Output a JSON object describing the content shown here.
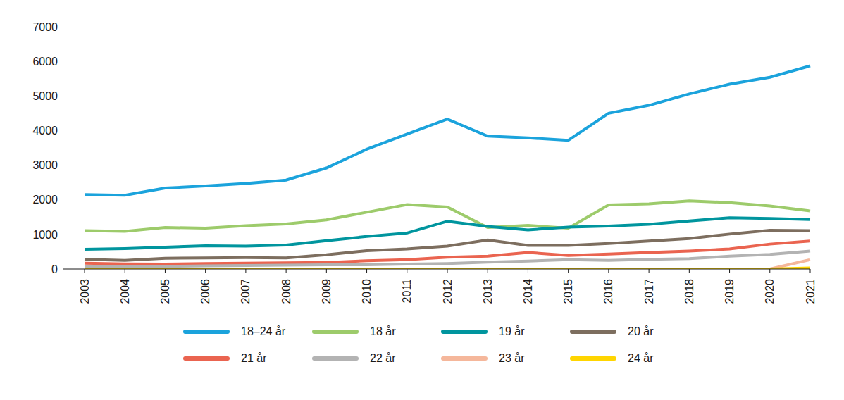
{
  "chart_data": {
    "type": "line",
    "categories": [
      "2003",
      "2004",
      "2005",
      "2006",
      "2007",
      "2008",
      "2009",
      "2010",
      "2011",
      "2012",
      "2013",
      "2014",
      "2015",
      "2016",
      "2017",
      "2018",
      "2019",
      "2020",
      "2021"
    ],
    "series": [
      {
        "name": "18–24 år",
        "color": "#1ba3dc",
        "values": [
          2150,
          2130,
          2340,
          2400,
          2470,
          2570,
          2920,
          3460,
          3900,
          4330,
          3840,
          3790,
          3720,
          4500,
          4730,
          5060,
          5340,
          5540,
          5870
        ]
      },
      {
        "name": "18 år",
        "color": "#9dcb6b",
        "values": [
          1110,
          1090,
          1200,
          1180,
          1250,
          1300,
          1420,
          1640,
          1860,
          1790,
          1200,
          1260,
          1180,
          1850,
          1880,
          1970,
          1920,
          1820,
          1680
        ]
      },
      {
        "name": "19 år",
        "color": "#00959e",
        "values": [
          570,
          590,
          630,
          670,
          660,
          690,
          820,
          940,
          1040,
          1380,
          1230,
          1130,
          1210,
          1240,
          1290,
          1390,
          1480,
          1460,
          1430
        ]
      },
      {
        "name": "20 år",
        "color": "#7d6e5f",
        "values": [
          280,
          250,
          310,
          320,
          330,
          320,
          410,
          530,
          580,
          660,
          840,
          680,
          680,
          740,
          810,
          880,
          1010,
          1120,
          1110
        ]
      },
      {
        "name": "21 år",
        "color": "#ea6450",
        "values": [
          170,
          150,
          140,
          160,
          170,
          180,
          190,
          240,
          270,
          340,
          370,
          480,
          390,
          430,
          480,
          520,
          580,
          720,
          810
        ]
      },
      {
        "name": "22 år",
        "color": "#b3b3b3",
        "values": [
          60,
          70,
          80,
          90,
          100,
          110,
          120,
          120,
          140,
          160,
          200,
          230,
          270,
          250,
          280,
          300,
          370,
          420,
          520
        ]
      },
      {
        "name": "23 år",
        "color": "#f5b79b",
        "values": [
          0,
          0,
          0,
          0,
          0,
          0,
          0,
          0,
          0,
          0,
          0,
          0,
          0,
          0,
          0,
          0,
          0,
          0,
          270
        ]
      },
      {
        "name": "24 år",
        "color": "#ffd500",
        "values": [
          0,
          0,
          0,
          0,
          0,
          0,
          0,
          0,
          0,
          0,
          0,
          0,
          0,
          0,
          0,
          0,
          0,
          0,
          30
        ]
      }
    ],
    "ylim": [
      0,
      7000
    ],
    "yticks": [
      0,
      1000,
      2000,
      3000,
      4000,
      5000,
      6000,
      7000
    ],
    "grid": false,
    "legend": "bottom"
  }
}
